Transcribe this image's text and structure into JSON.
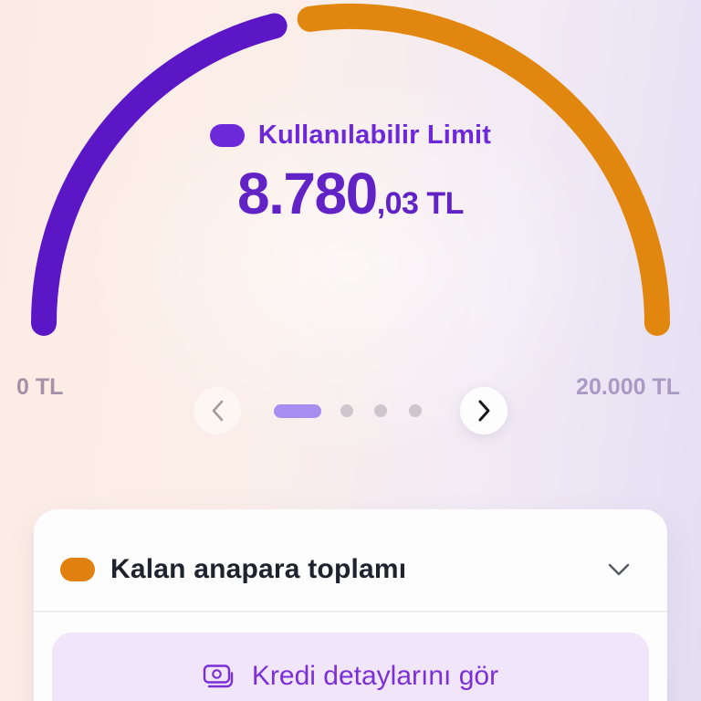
{
  "gauge": {
    "type": "gauge",
    "title": "Kullanılabilir Limit",
    "amount_main": "8.780",
    "amount_fraction": ",03 TL",
    "value": 8780.03,
    "max": 20000,
    "min_label": "0 TL",
    "max_label": "20.000 TL",
    "available_color": "#5b17c5",
    "remaining_color": "#e1870f"
  },
  "carousel": {
    "active_index": 0,
    "dot_count": 4,
    "active_color": "#a88df0"
  },
  "card": {
    "header": {
      "label": "Kalan anapara toplamı",
      "bullet_color": "#e0810f"
    },
    "action_button": {
      "label": "Kredi detaylarını gör"
    }
  }
}
